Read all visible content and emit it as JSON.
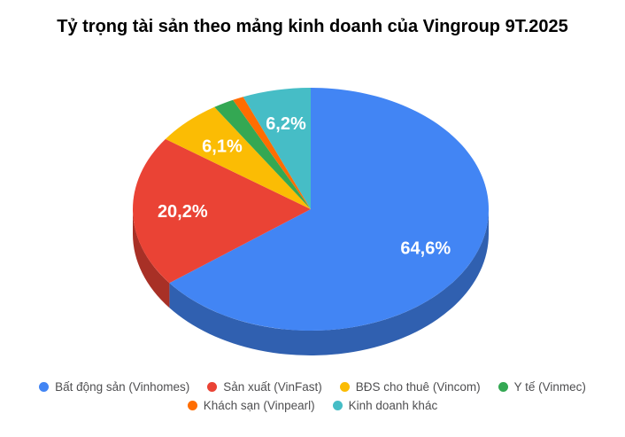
{
  "chart_data": {
    "type": "pie",
    "is_3d": true,
    "title": "Tỷ trọng tài sản theo mảng kinh doanh của Vingroup 9T.2025",
    "legend_position": "bottom",
    "background_color": "#ffffff",
    "slice_label_color": "#ffffff",
    "slices": [
      {
        "label": "Bất động sản (Vinhomes)",
        "value": 64.6,
        "display": "64,6%",
        "color": "#4285F4"
      },
      {
        "label": "Sản xuất (VinFast)",
        "value": 20.2,
        "display": "20,2%",
        "color": "#EA4335"
      },
      {
        "label": "BĐS cho thuê (Vincom)",
        "value": 6.1,
        "display": "6,1%",
        "color": "#FBBC04"
      },
      {
        "label": "Y tế (Vinmec)",
        "value": 1.9,
        "display": "",
        "color": "#34A853"
      },
      {
        "label": "Khách sạn (Vinpearl)",
        "value": 1.0,
        "display": "",
        "color": "#FF6D01"
      },
      {
        "label": "Kinh doanh khác",
        "value": 6.2,
        "display": "6,2%",
        "color": "#46BDC6"
      }
    ]
  }
}
